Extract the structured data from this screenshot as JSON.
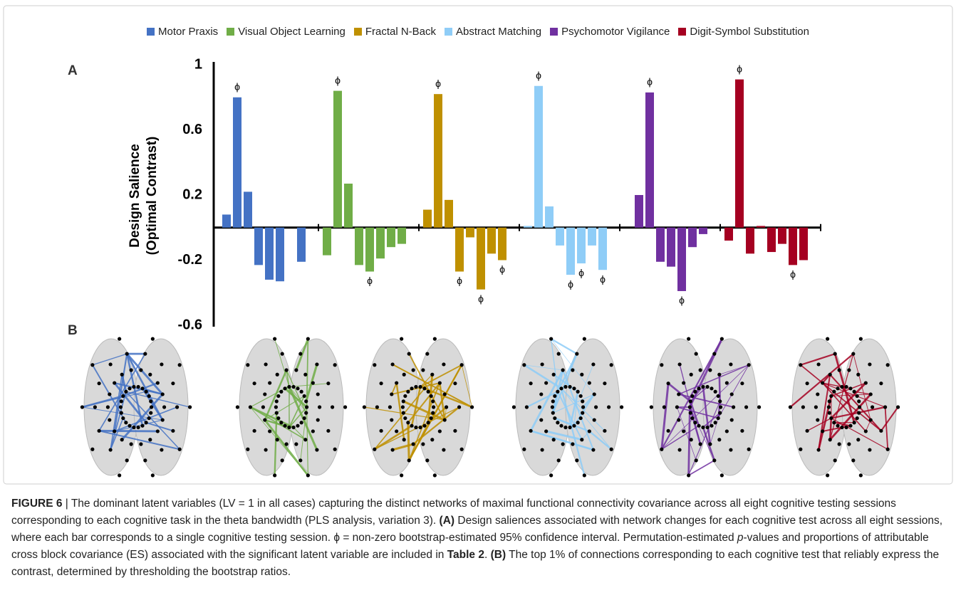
{
  "chart_data": {
    "type": "bar",
    "panel_labels": [
      "A",
      "B"
    ],
    "ylabel": [
      "Design Salience",
      "(Optimal Contrast)"
    ],
    "ylim": [
      -0.6,
      1
    ],
    "yticks": [
      1,
      0.6,
      0.2,
      -0.2,
      -0.6
    ],
    "marker_symbol": "ϕ",
    "series": [
      {
        "name": "Motor Praxis",
        "color": "#4472c4",
        "values": [
          0.08,
          0.8,
          0.22,
          -0.23,
          -0.32,
          -0.33,
          0,
          -0.21
        ],
        "significant": [
          1
        ]
      },
      {
        "name": "Visual Object Learning",
        "color": "#70ad47",
        "values": [
          -0.17,
          0.84,
          0.27,
          -0.23,
          -0.27,
          -0.19,
          -0.12,
          -0.1
        ],
        "significant": [
          1,
          4
        ]
      },
      {
        "name": "Fractal N-Back",
        "color": "#bf9000",
        "values": [
          0.11,
          0.82,
          0.17,
          -0.27,
          -0.06,
          -0.38,
          -0.16,
          -0.2
        ],
        "significant": [
          1,
          3,
          5,
          7
        ]
      },
      {
        "name": "Abstract Matching",
        "color": "#8fcdf7",
        "values": [
          0.01,
          0.87,
          0.13,
          -0.11,
          -0.29,
          -0.22,
          -0.11,
          -0.26
        ],
        "significant": [
          1,
          4,
          5,
          7
        ]
      },
      {
        "name": "Psychomotor Vigilance",
        "color": "#7030a0",
        "values": [
          0,
          0.2,
          0.83,
          -0.21,
          -0.24,
          -0.39,
          -0.12,
          -0.04
        ],
        "significant": [
          2,
          5
        ]
      },
      {
        "name": "Digit-Symbol Substitution",
        "color": "#a50021",
        "values": [
          -0.08,
          0.91,
          -0.16,
          0.01,
          -0.15,
          -0.1,
          -0.23,
          -0.2
        ],
        "significant": [
          1,
          6
        ]
      }
    ]
  },
  "caption": [
    {
      "text": "FIGURE 6",
      "style": "bold"
    },
    {
      "text": " | The dominant latent variables (LV = 1 in all cases) capturing the distinct networks of maximal functional connectivity covariance across all eight cognitive testing sessions corresponding to each cognitive task in the theta bandwidth (PLS analysis, variation 3). ",
      "style": "normal"
    },
    {
      "text": "(A)",
      "style": "bold"
    },
    {
      "text": " Design saliences associated with network changes for each cognitive test across all eight sessions, where each bar corresponds to a single cognitive testing session. ϕ = non-zero bootstrap-estimated 95% confidence interval. Permutation-estimated ",
      "style": "normal"
    },
    {
      "text": "p",
      "style": "italic"
    },
    {
      "text": "-values and proportions of attributable cross block covariance (ES) associated with the significant latent variable are included in ",
      "style": "normal"
    },
    {
      "text": "Table 2",
      "style": "bold"
    },
    {
      "text": ". ",
      "style": "normal"
    },
    {
      "text": "(B)",
      "style": "bold"
    },
    {
      "text": " The top 1% of connections corresponding to each cognitive test that reliably express the contrast, determined by thresholding the bootstrap ratios.",
      "style": "normal"
    }
  ]
}
